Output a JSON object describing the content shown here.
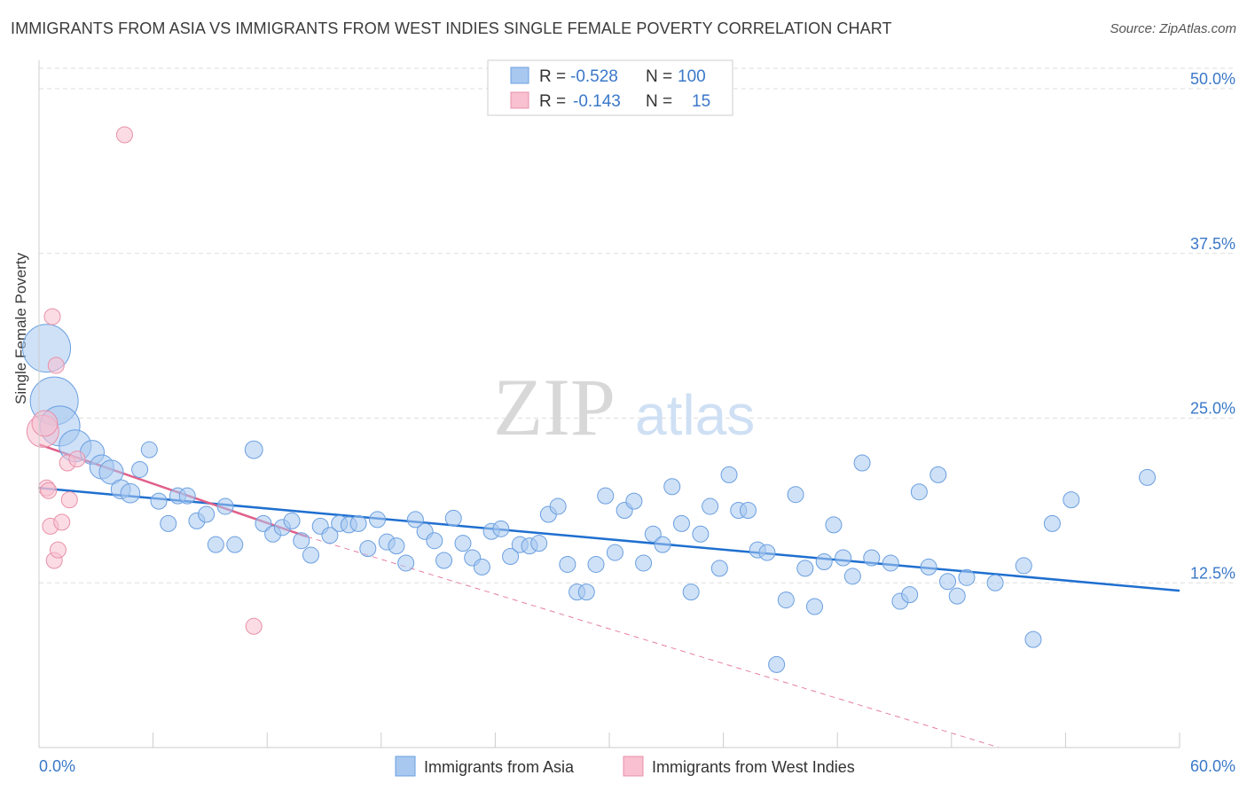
{
  "header": {
    "title": "IMMIGRANTS FROM ASIA VS IMMIGRANTS FROM WEST INDIES SINGLE FEMALE POVERTY CORRELATION CHART",
    "source": "Source: ZipAtlas.com"
  },
  "watermark": {
    "zip": "ZIP",
    "atlas": "atlas"
  },
  "colors": {
    "asia_fill": "#a8c8f0",
    "asia_stroke": "#6a9fe0",
    "asia_line": "#1f6fd0",
    "wi_fill": "#f8c0d0",
    "wi_stroke": "#e890a8",
    "wi_line": "#e0608a",
    "value_text": "#3a78c8",
    "grid": "#dddddd"
  },
  "legend": {
    "rows": [
      {
        "r_label": "R =",
        "r_value": "-0.528",
        "n_label": "N =",
        "n_value": "100"
      },
      {
        "r_label": "R =",
        "r_value": "-0.143",
        "n_label": "N =",
        "n_value": "15"
      }
    ]
  },
  "chart_data": {
    "type": "scatter",
    "title": "IMMIGRANTS FROM ASIA VS IMMIGRANTS FROM WEST INDIES SINGLE FEMALE POVERTY CORRELATION CHART",
    "xlabel": "",
    "ylabel": "Single Female Poverty",
    "xlim": [
      0,
      60
    ],
    "ylim": [
      0,
      50
    ],
    "x_tick_labels": [
      "0.0%",
      "60.0%"
    ],
    "y_ticks": [
      12.5,
      25.0,
      37.5,
      50.0
    ],
    "y_tick_labels": [
      "12.5%",
      "25.0%",
      "37.5%",
      "50.0%"
    ],
    "grid": true,
    "legend_position": "bottom",
    "series": [
      {
        "name": "Immigrants from Asia",
        "r": -0.528,
        "n": 100,
        "trend": {
          "x": [
            0,
            60
          ],
          "y": [
            19.7,
            11.9
          ]
        },
        "points": [
          [
            0.4,
            30.3,
            3
          ],
          [
            0.8,
            26.3,
            3
          ],
          [
            1.1,
            24.4,
            2.5
          ],
          [
            1.9,
            22.9,
            2
          ],
          [
            2.8,
            22.4,
            1.5
          ],
          [
            3.3,
            21.3,
            1.5
          ],
          [
            3.8,
            20.9,
            1.5
          ],
          [
            4.3,
            19.6,
            1.2
          ],
          [
            4.8,
            19.3,
            1.2
          ],
          [
            5.3,
            21.1,
            1
          ],
          [
            5.8,
            22.6,
            1
          ],
          [
            6.3,
            18.7,
            1
          ],
          [
            6.8,
            17.0,
            1
          ],
          [
            7.3,
            19.1,
            1
          ],
          [
            7.8,
            19.1,
            1
          ],
          [
            8.3,
            17.2,
            1
          ],
          [
            8.8,
            17.7,
            1
          ],
          [
            9.3,
            15.4,
            1
          ],
          [
            9.8,
            18.3,
            1
          ],
          [
            10.3,
            15.4,
            1
          ],
          [
            11.3,
            22.6,
            1.1
          ],
          [
            11.8,
            17.0,
            1
          ],
          [
            12.3,
            16.2,
            1
          ],
          [
            12.8,
            16.7,
            1
          ],
          [
            13.3,
            17.2,
            1
          ],
          [
            13.8,
            15.7,
            1
          ],
          [
            14.3,
            14.6,
            1
          ],
          [
            14.8,
            16.8,
            1
          ],
          [
            15.3,
            16.1,
            1
          ],
          [
            15.8,
            17.0,
            1
          ],
          [
            16.3,
            16.9,
            1
          ],
          [
            16.8,
            17.0,
            1
          ],
          [
            17.3,
            15.1,
            1
          ],
          [
            17.8,
            17.3,
            1
          ],
          [
            18.3,
            15.6,
            1
          ],
          [
            18.8,
            15.3,
            1
          ],
          [
            19.3,
            14.0,
            1
          ],
          [
            19.8,
            17.3,
            1
          ],
          [
            20.3,
            16.4,
            1
          ],
          [
            20.8,
            15.7,
            1
          ],
          [
            21.3,
            14.2,
            1
          ],
          [
            21.8,
            17.4,
            1
          ],
          [
            22.3,
            15.5,
            1
          ],
          [
            22.8,
            14.4,
            1
          ],
          [
            23.3,
            13.7,
            1
          ],
          [
            23.8,
            16.4,
            1
          ],
          [
            24.3,
            16.6,
            1
          ],
          [
            24.8,
            14.5,
            1
          ],
          [
            25.3,
            15.4,
            1
          ],
          [
            25.8,
            15.3,
            1
          ],
          [
            26.3,
            15.5,
            1
          ],
          [
            26.8,
            17.7,
            1
          ],
          [
            27.3,
            18.3,
            1
          ],
          [
            27.8,
            13.9,
            1
          ],
          [
            28.3,
            11.8,
            1
          ],
          [
            28.8,
            11.8,
            1
          ],
          [
            29.3,
            13.9,
            1
          ],
          [
            29.8,
            19.1,
            1
          ],
          [
            30.3,
            14.8,
            1
          ],
          [
            30.8,
            18.0,
            1
          ],
          [
            31.3,
            18.7,
            1
          ],
          [
            31.8,
            14.0,
            1
          ],
          [
            32.3,
            16.2,
            1
          ],
          [
            32.8,
            15.4,
            1
          ],
          [
            33.3,
            19.8,
            1
          ],
          [
            33.8,
            17.0,
            1
          ],
          [
            34.3,
            11.8,
            1
          ],
          [
            34.8,
            16.2,
            1
          ],
          [
            35.3,
            18.3,
            1
          ],
          [
            35.8,
            13.6,
            1
          ],
          [
            36.3,
            20.7,
            1
          ],
          [
            36.8,
            18.0,
            1
          ],
          [
            37.3,
            18.0,
            1
          ],
          [
            37.8,
            15.0,
            1
          ],
          [
            38.3,
            14.8,
            1
          ],
          [
            38.8,
            6.3,
            1
          ],
          [
            39.3,
            11.2,
            1
          ],
          [
            39.8,
            19.2,
            1
          ],
          [
            40.3,
            13.6,
            1
          ],
          [
            40.8,
            10.7,
            1
          ],
          [
            41.3,
            14.1,
            1
          ],
          [
            41.8,
            16.9,
            1
          ],
          [
            42.3,
            14.4,
            1
          ],
          [
            42.8,
            13.0,
            1
          ],
          [
            43.3,
            21.6,
            1
          ],
          [
            43.8,
            14.4,
            1
          ],
          [
            44.8,
            14.0,
            1
          ],
          [
            45.3,
            11.1,
            1
          ],
          [
            45.8,
            11.6,
            1
          ],
          [
            46.3,
            19.4,
            1
          ],
          [
            46.8,
            13.7,
            1
          ],
          [
            47.3,
            20.7,
            1
          ],
          [
            47.8,
            12.6,
            1
          ],
          [
            48.3,
            11.5,
            1
          ],
          [
            48.8,
            12.9,
            1
          ],
          [
            50.3,
            12.5,
            1
          ],
          [
            51.8,
            13.8,
            1
          ],
          [
            52.3,
            8.2,
            1
          ],
          [
            53.3,
            17.0,
            1
          ],
          [
            54.3,
            18.8,
            1
          ],
          [
            58.3,
            20.5,
            1
          ]
        ]
      },
      {
        "name": "Immigrants from West Indies",
        "r": -0.143,
        "n": 15,
        "trend": {
          "x": [
            0,
            14.1
          ],
          "y": [
            23.0,
            16.0
          ]
        },
        "trend_dashed": {
          "x": [
            14.1,
            50.5
          ],
          "y": [
            16.0,
            0.0
          ]
        },
        "points": [
          [
            0.2,
            24.0,
            2
          ],
          [
            0.3,
            24.6,
            1.6
          ],
          [
            0.4,
            19.7,
            1
          ],
          [
            0.5,
            19.5,
            1
          ],
          [
            0.6,
            16.8,
            1
          ],
          [
            0.7,
            32.7,
            1
          ],
          [
            0.8,
            14.2,
            1
          ],
          [
            0.9,
            29.0,
            1
          ],
          [
            1.0,
            15.0,
            1
          ],
          [
            1.2,
            17.1,
            1
          ],
          [
            1.5,
            21.6,
            1
          ],
          [
            1.6,
            18.8,
            1
          ],
          [
            2.0,
            21.9,
            1
          ],
          [
            4.5,
            46.5,
            1
          ],
          [
            11.3,
            9.2,
            1
          ]
        ]
      }
    ]
  },
  "bottom_legend": {
    "items": [
      "Immigrants from Asia",
      "Immigrants from West Indies"
    ]
  }
}
